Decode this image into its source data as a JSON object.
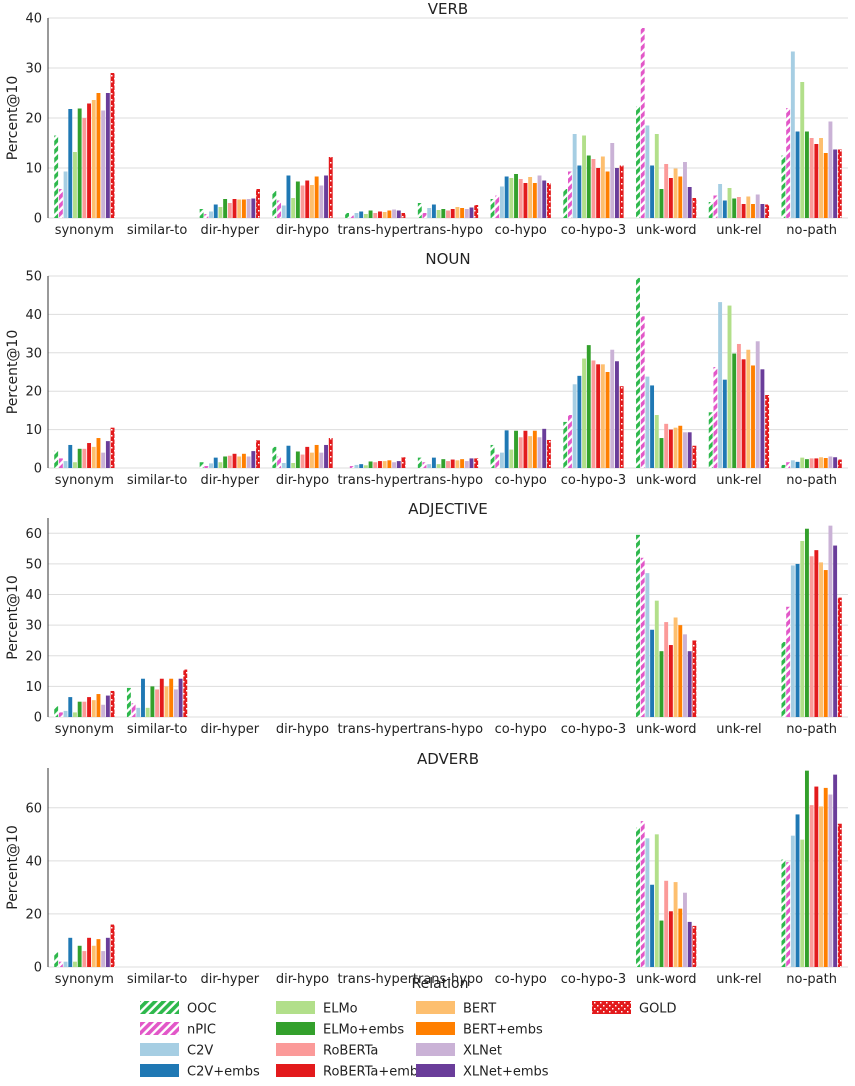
{
  "chart_data": {
    "type": "bar",
    "xlabel": "Relation",
    "ylabel": "Percent@10",
    "categories": [
      "synonym",
      "similar-to",
      "dir-hyper",
      "dir-hypo",
      "trans-hyper",
      "trans-hypo",
      "co-hypo",
      "co-hypo-3",
      "unk-word",
      "unk-rel",
      "no-path"
    ],
    "series_styles": [
      {
        "name": "OOC",
        "color": "#2eb84c",
        "pattern": "diag"
      },
      {
        "name": "nPIC",
        "color": "#e257c8",
        "pattern": "diag"
      },
      {
        "name": "C2V",
        "color": "#a6cee3",
        "pattern": "solid"
      },
      {
        "name": "C2V+embs",
        "color": "#1f78b4",
        "pattern": "solid"
      },
      {
        "name": "ELMo",
        "color": "#b2df8a",
        "pattern": "solid"
      },
      {
        "name": "ELMo+embs",
        "color": "#33a02c",
        "pattern": "solid"
      },
      {
        "name": "RoBERTa",
        "color": "#fb9a99",
        "pattern": "solid"
      },
      {
        "name": "RoBERTa+embs",
        "color": "#e31a1c",
        "pattern": "solid"
      },
      {
        "name": "BERT",
        "color": "#fdbf6f",
        "pattern": "solid"
      },
      {
        "name": "BERT+embs",
        "color": "#ff7f00",
        "pattern": "solid"
      },
      {
        "name": "XLNet",
        "color": "#cab2d6",
        "pattern": "solid"
      },
      {
        "name": "XLNet+embs",
        "color": "#6a3d9a",
        "pattern": "solid"
      },
      {
        "name": "GOLD",
        "color": "#e31a1c",
        "pattern": "zigzag"
      }
    ],
    "panels": [
      {
        "title": "VERB",
        "ylim": [
          0,
          40
        ],
        "yticks": [
          0,
          10,
          20,
          30,
          40
        ],
        "values": [
          [
            16.5,
            0,
            1.8,
            5.4,
            1.0,
            3.0,
            3.8,
            5.8,
            22.3,
            3.2,
            12.5
          ],
          [
            5.8,
            0,
            0.8,
            3.5,
            0.5,
            1.0,
            4.5,
            9.3,
            38.0,
            4.5,
            22.0
          ],
          [
            9.3,
            0,
            1.3,
            2.5,
            1.0,
            2.0,
            6.3,
            16.8,
            18.5,
            6.8,
            33.3
          ],
          [
            21.8,
            0,
            2.7,
            8.5,
            1.3,
            2.7,
            8.3,
            10.5,
            10.5,
            3.5,
            17.3
          ],
          [
            13.2,
            0,
            2.2,
            4.0,
            0.8,
            1.6,
            8.0,
            16.5,
            16.8,
            6.0,
            27.2
          ],
          [
            21.9,
            0,
            3.8,
            7.3,
            1.5,
            1.8,
            8.8,
            12.5,
            5.8,
            3.9,
            17.3
          ],
          [
            20.0,
            0,
            3.0,
            6.5,
            1.0,
            1.5,
            7.8,
            11.8,
            10.8,
            4.2,
            16.0
          ],
          [
            22.9,
            0,
            3.8,
            7.5,
            1.3,
            1.8,
            7.0,
            10.0,
            8.0,
            2.8,
            14.8
          ],
          [
            23.6,
            0,
            3.7,
            6.6,
            1.2,
            2.2,
            8.2,
            12.3,
            9.9,
            4.3,
            16.0
          ],
          [
            25.0,
            0,
            3.7,
            8.3,
            1.5,
            2.0,
            7.0,
            9.3,
            8.3,
            2.8,
            13.0
          ],
          [
            21.5,
            0,
            3.8,
            6.5,
            1.7,
            1.8,
            8.5,
            15.0,
            11.2,
            4.7,
            19.3
          ],
          [
            25.0,
            0,
            3.9,
            8.5,
            1.5,
            2.1,
            7.5,
            10.0,
            6.2,
            2.8,
            13.7
          ],
          [
            29.0,
            0,
            5.8,
            12.2,
            1.0,
            2.6,
            7.0,
            10.5,
            4.0,
            2.7,
            13.7
          ]
        ]
      },
      {
        "title": "NOUN",
        "ylim": [
          0,
          50
        ],
        "yticks": [
          0,
          10,
          20,
          30,
          40,
          50
        ],
        "values": [
          [
            4.5,
            0,
            1.5,
            5.5,
            0,
            2.7,
            6.0,
            12.0,
            49.5,
            14.5,
            0.8
          ],
          [
            2.5,
            0,
            0.5,
            3.0,
            0.5,
            1.5,
            3.5,
            13.8,
            39.5,
            26.3,
            1.5
          ],
          [
            1.8,
            0,
            1.2,
            1.3,
            0.8,
            1.0,
            4.0,
            21.8,
            23.8,
            43.2,
            2.0
          ],
          [
            6.0,
            0,
            2.7,
            5.8,
            1.0,
            2.7,
            9.8,
            24.0,
            21.5,
            23.0,
            1.6
          ],
          [
            1.5,
            0,
            1.5,
            1.3,
            0.7,
            1.0,
            4.8,
            28.5,
            13.8,
            42.3,
            2.7
          ],
          [
            5.0,
            0,
            3.0,
            4.3,
            1.7,
            2.3,
            9.7,
            32.0,
            7.8,
            29.8,
            2.3
          ],
          [
            5.0,
            0,
            3.2,
            3.5,
            1.5,
            1.8,
            8.0,
            28.0,
            11.5,
            32.3,
            2.5
          ],
          [
            6.5,
            0,
            3.7,
            5.5,
            1.8,
            2.2,
            9.7,
            27.0,
            10.0,
            28.3,
            2.5
          ],
          [
            5.5,
            0,
            3.0,
            4.0,
            1.8,
            2.0,
            8.3,
            27.0,
            10.5,
            30.8,
            2.8
          ],
          [
            7.8,
            0,
            3.7,
            6.0,
            2.0,
            2.3,
            9.7,
            25.0,
            11.0,
            26.7,
            2.6
          ],
          [
            4.0,
            0,
            3.0,
            4.0,
            1.5,
            1.8,
            8.0,
            30.8,
            9.3,
            33.0,
            3.0
          ],
          [
            7.0,
            0,
            4.4,
            6.0,
            1.8,
            2.5,
            10.2,
            27.8,
            9.3,
            25.7,
            2.8
          ],
          [
            10.5,
            0,
            7.2,
            7.8,
            2.8,
            2.5,
            7.3,
            21.3,
            5.8,
            19.0,
            2.2
          ]
        ]
      },
      {
        "title": "ADJECTIVE",
        "ylim": [
          0,
          65
        ],
        "yticks": [
          0,
          10,
          20,
          30,
          40,
          50,
          60
        ],
        "values": [
          [
            3.5,
            9.5,
            0,
            0,
            0,
            0,
            0,
            0,
            59.5,
            0,
            24.5
          ],
          [
            1.5,
            4.5,
            0,
            0,
            0,
            0,
            0,
            0,
            52.0,
            0,
            36.0
          ],
          [
            2.0,
            3.0,
            0,
            0,
            0,
            0,
            0,
            0,
            47.0,
            0,
            49.5
          ],
          [
            6.5,
            12.5,
            0,
            0,
            0,
            0,
            0,
            0,
            28.5,
            0,
            50.0
          ],
          [
            1.5,
            3.0,
            0,
            0,
            0,
            0,
            0,
            0,
            38.0,
            0,
            57.5
          ],
          [
            5.0,
            10.0,
            0,
            0,
            0,
            0,
            0,
            0,
            21.5,
            0,
            61.5
          ],
          [
            5.0,
            9.0,
            0,
            0,
            0,
            0,
            0,
            0,
            31.0,
            0,
            52.5
          ],
          [
            6.5,
            12.5,
            0,
            0,
            0,
            0,
            0,
            0,
            23.5,
            0,
            54.5
          ],
          [
            5.5,
            10.0,
            0,
            0,
            0,
            0,
            0,
            0,
            32.5,
            0,
            50.5
          ],
          [
            7.5,
            12.5,
            0,
            0,
            0,
            0,
            0,
            0,
            30.0,
            0,
            48.0
          ],
          [
            4.0,
            9.0,
            0,
            0,
            0,
            0,
            0,
            0,
            27.0,
            0,
            62.5
          ],
          [
            7.0,
            12.5,
            0,
            0,
            0,
            0,
            0,
            0,
            21.5,
            0,
            56.0
          ],
          [
            8.5,
            15.5,
            0,
            0,
            0,
            0,
            0,
            0,
            25.0,
            0,
            39.0
          ]
        ]
      },
      {
        "title": "ADVERB",
        "ylim": [
          0,
          75
        ],
        "yticks": [
          0,
          20,
          40,
          60
        ],
        "values": [
          [
            5.5,
            0,
            0,
            0,
            0,
            0,
            0,
            0,
            52.5,
            0,
            40.5
          ],
          [
            2.0,
            0,
            0,
            0,
            0,
            0,
            0,
            0,
            55.0,
            0,
            39.5
          ],
          [
            2.0,
            0,
            0,
            0,
            0,
            0,
            0,
            0,
            48.5,
            0,
            49.5
          ],
          [
            11.0,
            0,
            0,
            0,
            0,
            0,
            0,
            0,
            31.0,
            0,
            57.5
          ],
          [
            2.0,
            0,
            0,
            0,
            0,
            0,
            0,
            0,
            50.0,
            0,
            48.0
          ],
          [
            8.0,
            0,
            0,
            0,
            0,
            0,
            0,
            0,
            17.5,
            0,
            74.0
          ],
          [
            6.0,
            0,
            0,
            0,
            0,
            0,
            0,
            0,
            32.5,
            0,
            61.0
          ],
          [
            11.0,
            0,
            0,
            0,
            0,
            0,
            0,
            0,
            21.0,
            0,
            68.0
          ],
          [
            8.0,
            0,
            0,
            0,
            0,
            0,
            0,
            0,
            32.0,
            0,
            60.5
          ],
          [
            10.5,
            0,
            0,
            0,
            0,
            0,
            0,
            0,
            22.0,
            0,
            67.5
          ],
          [
            6.0,
            0,
            0,
            0,
            0,
            0,
            0,
            0,
            28.0,
            0,
            65.0
          ],
          [
            11.0,
            0,
            0,
            0,
            0,
            0,
            0,
            0,
            17.0,
            0,
            72.5
          ],
          [
            16.0,
            0,
            0,
            0,
            0,
            0,
            0,
            0,
            15.5,
            0,
            54.0
          ]
        ]
      }
    ],
    "legend": {
      "title": "Relation",
      "position": "bottom-center",
      "columns": 4
    }
  }
}
